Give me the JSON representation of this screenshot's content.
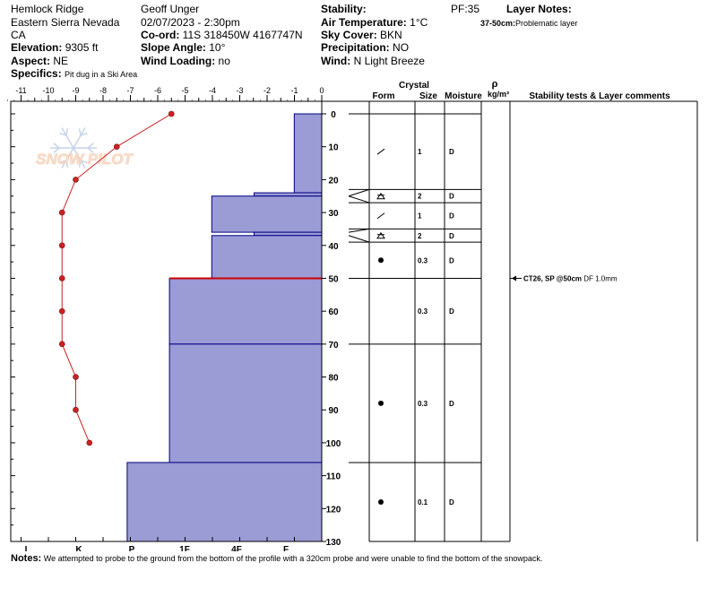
{
  "header": {
    "location": "Hemlock Ridge",
    "region": "Eastern Sierra Nevada",
    "state": "CA",
    "elevation_label": "Elevation:",
    "elevation": "9305 ft",
    "aspect_label": "Aspect:",
    "aspect": "NE",
    "specifics_label": "Specifics:",
    "specifics": "Pit dug in a Ski Area",
    "observer": "Geoff Unger",
    "datetime": "02/07/2023 - 2:30pm",
    "coord_label": "Co-ord:",
    "coord": "11S 318450W 4167747N",
    "slope_label": "Slope Angle:",
    "slope": "10°",
    "wind_loading_label": "Wind Loading:",
    "wind_loading": "no",
    "stability_label": "Stability:",
    "air_temp_label": "Air Temperature:",
    "air_temp": "1°C",
    "sky_label": "Sky Cover:",
    "sky": "BKN",
    "precip_label": "Precipitation:",
    "precip": "NO",
    "wind_label": "Wind:",
    "wind": "N Light Breeze",
    "pf": "PF:35",
    "layer_notes_label": "Layer Notes:",
    "layer_note_range": "37-50cm:",
    "layer_note_text": "Problematic layer"
  },
  "notes": {
    "label": "Notes:",
    "text": "We attempted to probe to the ground from the bottom of the profile with a 320cm probe and were unable to find the bottom of the snowpack."
  },
  "watermark": "SNOW PILOT",
  "table_headers": {
    "crystal": "Crystal",
    "form": "Form",
    "size": "Size",
    "moisture": "Moisture",
    "rho": "ρ",
    "density_unit": "kg/m³",
    "comments": "Stability tests & Layer comments"
  },
  "colors": {
    "hardness_fill": "#9b9bd6",
    "hardness_stroke": "#000080",
    "temp_line": "#cc2222",
    "weak_layer_line": "#cc0000"
  },
  "chart_data": {
    "type": "snow_profile",
    "temperature_axis": {
      "ticks": [
        -11,
        -10,
        -9,
        -8,
        -7,
        -6,
        -5,
        -4,
        -3,
        -2,
        -1,
        0
      ],
      "labels": [
        "-11",
        "-10",
        "-9",
        "-8",
        "-7",
        "-6",
        "-5",
        "-4",
        "-3",
        "-2",
        "-1",
        "0"
      ],
      "range": [
        -11.5,
        0
      ]
    },
    "hardness_axis": {
      "labels": [
        "I",
        "K",
        "P",
        "1F",
        "4F",
        "F"
      ]
    },
    "depth_axis": {
      "range": [
        0,
        130
      ],
      "ticks": [
        0,
        10,
        20,
        30,
        40,
        50,
        60,
        70,
        80,
        90,
        100,
        110,
        120,
        130
      ],
      "labels": [
        "0",
        "10",
        "20",
        "30",
        "40",
        "50",
        "60",
        "70",
        "80",
        "90",
        "100",
        "110",
        "120",
        "130"
      ]
    },
    "temperature_profile": [
      {
        "depth": 0,
        "temp": -5.5
      },
      {
        "depth": 10,
        "temp": -7.5
      },
      {
        "depth": 20,
        "temp": -9.0
      },
      {
        "depth": 30,
        "temp": -9.5
      },
      {
        "depth": 40,
        "temp": -9.5
      },
      {
        "depth": 50,
        "temp": -9.5
      },
      {
        "depth": 60,
        "temp": -9.5
      },
      {
        "depth": 70,
        "temp": -9.5
      },
      {
        "depth": 80,
        "temp": -9.0
      },
      {
        "depth": 90,
        "temp": -9.0
      },
      {
        "depth": 100,
        "temp": -8.5
      }
    ],
    "hardness_layers": [
      {
        "top": 0,
        "bottom": 24,
        "hardness": 1.3
      },
      {
        "top": 24,
        "bottom": 25,
        "hardness": 3.2
      },
      {
        "top": 25,
        "bottom": 36,
        "hardness": 5.2
      },
      {
        "top": 36,
        "bottom": 37,
        "hardness": 3.2
      },
      {
        "top": 37,
        "bottom": 50,
        "hardness": 5.2
      },
      {
        "top": 50,
        "bottom": 70,
        "hardness": 7.2
      },
      {
        "top": 70,
        "bottom": 106,
        "hardness": 7.2
      },
      {
        "top": 106,
        "bottom": 130,
        "hardness": 9.2
      }
    ],
    "weak_layer_depth": 50,
    "layers": [
      {
        "top": 0,
        "bottom": 23,
        "form": "slash",
        "size": "1",
        "moisture": "D"
      },
      {
        "top": 23,
        "bottom": 27,
        "form": "surface-hoar",
        "size": "2",
        "moisture": "D"
      },
      {
        "top": 27,
        "bottom": 35,
        "form": "slash",
        "size": "1",
        "moisture": "D"
      },
      {
        "top": 35,
        "bottom": 39,
        "form": "surface-hoar",
        "size": "2",
        "moisture": "D"
      },
      {
        "top": 39,
        "bottom": 50,
        "form": "dot",
        "size": "0.3",
        "moisture": "D"
      },
      {
        "top": 50,
        "bottom": 70,
        "form": "none",
        "size": "0.3",
        "moisture": "D"
      },
      {
        "top": 70,
        "bottom": 106,
        "form": "dot",
        "size": "0.3",
        "moisture": "D"
      },
      {
        "top": 106,
        "bottom": 130,
        "form": "dot",
        "size": "0.1",
        "moisture": "D"
      }
    ],
    "stability_test": {
      "depth": 50,
      "bold": "CT26, SP @50cm",
      "text": "DF 1.0mm"
    }
  }
}
